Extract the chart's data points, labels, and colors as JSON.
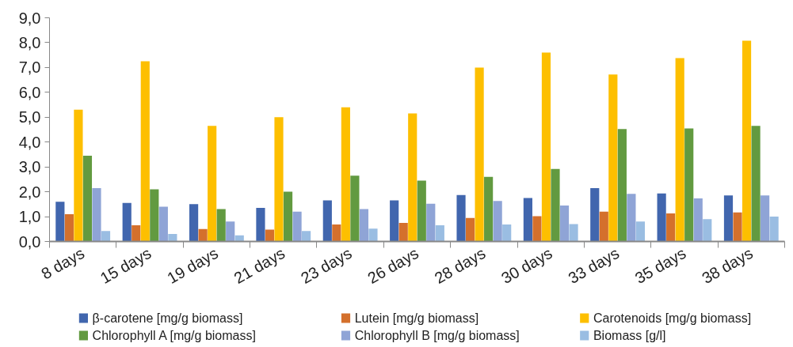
{
  "chart_data": {
    "type": "bar",
    "categories": [
      "8 days",
      "15 days",
      "19 days",
      "21 days",
      "23 days",
      "26 days",
      "28 days",
      "30 days",
      "33 days",
      "35 days",
      "38 days"
    ],
    "series": [
      {
        "name": "β-carotene [mg/g biomass]",
        "color": "#4166ae",
        "values": [
          1.6,
          1.55,
          1.5,
          1.35,
          1.65,
          1.65,
          1.87,
          1.75,
          2.15,
          1.93,
          1.85
        ]
      },
      {
        "name": "Lutein [mg/g biomass]",
        "color": "#d4702c",
        "values": [
          1.1,
          0.65,
          0.5,
          0.48,
          0.68,
          0.75,
          0.95,
          1.02,
          1.2,
          1.13,
          1.17
        ]
      },
      {
        "name": "Carotenoids [mg/g biomass]",
        "color": "#fdbf00",
        "values": [
          5.3,
          7.25,
          4.65,
          5.0,
          5.4,
          5.15,
          7.0,
          7.6,
          6.72,
          7.38,
          8.08
        ]
      },
      {
        "name": "Chlorophyll A [mg/g biomass]",
        "color": "#629a40",
        "values": [
          3.45,
          2.1,
          1.3,
          2.0,
          2.65,
          2.45,
          2.6,
          2.92,
          4.52,
          4.55,
          4.65
        ]
      },
      {
        "name": "Chlorophyll B [mg/g biomass]",
        "color": "#8fa4d6",
        "values": [
          2.15,
          1.4,
          0.8,
          1.2,
          1.3,
          1.52,
          1.63,
          1.45,
          1.92,
          1.73,
          1.85
        ]
      },
      {
        "name": "Biomass [g/l]",
        "color": "#9abde2",
        "values": [
          0.42,
          0.3,
          0.25,
          0.42,
          0.52,
          0.65,
          0.68,
          0.7,
          0.8,
          0.9,
          1.0
        ]
      }
    ],
    "ylim": [
      0,
      9
    ],
    "yticks": [
      {
        "value": 0,
        "label": "0,0"
      },
      {
        "value": 1,
        "label": "1,0"
      },
      {
        "value": 2,
        "label": "2,0"
      },
      {
        "value": 3,
        "label": "3,0"
      },
      {
        "value": 4,
        "label": "4,0"
      },
      {
        "value": 5,
        "label": "5,0"
      },
      {
        "value": 6,
        "label": "6,0"
      },
      {
        "value": 7,
        "label": "7,0"
      },
      {
        "value": 8,
        "label": "8,0"
      },
      {
        "value": 9,
        "label": "9,0"
      }
    ],
    "grid": false,
    "legend": "bottom"
  }
}
